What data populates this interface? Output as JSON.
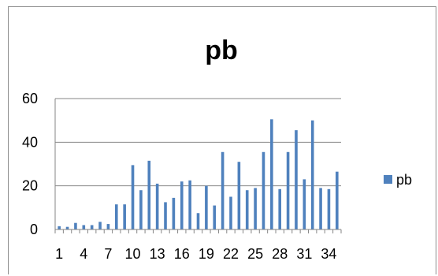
{
  "chart_data": {
    "type": "bar",
    "title": "pb",
    "xlabel": "",
    "ylabel": "",
    "categories": [
      "1",
      "2",
      "3",
      "4",
      "5",
      "6",
      "7",
      "8",
      "9",
      "10",
      "11",
      "12",
      "13",
      "14",
      "15",
      "16",
      "17",
      "18",
      "19",
      "20",
      "21",
      "22",
      "23",
      "24",
      "25",
      "26",
      "27",
      "28",
      "29",
      "30",
      "31",
      "32",
      "33",
      "34",
      "35"
    ],
    "x_tick_labels_shown": [
      "1",
      "4",
      "7",
      "10",
      "13",
      "16",
      "19",
      "22",
      "25",
      "28",
      "31",
      "34"
    ],
    "series": [
      {
        "name": "pb",
        "color": "#4f81bd",
        "values": [
          1.5,
          1.2,
          3,
          2,
          2,
          3.5,
          2.5,
          11.5,
          11.5,
          29.5,
          18,
          31.5,
          21,
          12.5,
          14.5,
          22,
          22.5,
          7.5,
          20,
          11,
          35.5,
          15,
          31,
          18,
          19,
          35.5,
          50.5,
          18.5,
          35.5,
          45.5,
          23,
          50,
          19,
          18.5,
          26.5
        ]
      }
    ],
    "ylim": [
      0,
      60
    ],
    "y_ticks": [
      "0",
      "20",
      "40",
      "60"
    ],
    "grid": "horizontal",
    "legend": {
      "position": "right",
      "label": "pb"
    },
    "axis_color": "#868686",
    "grid_color": "#868686"
  }
}
